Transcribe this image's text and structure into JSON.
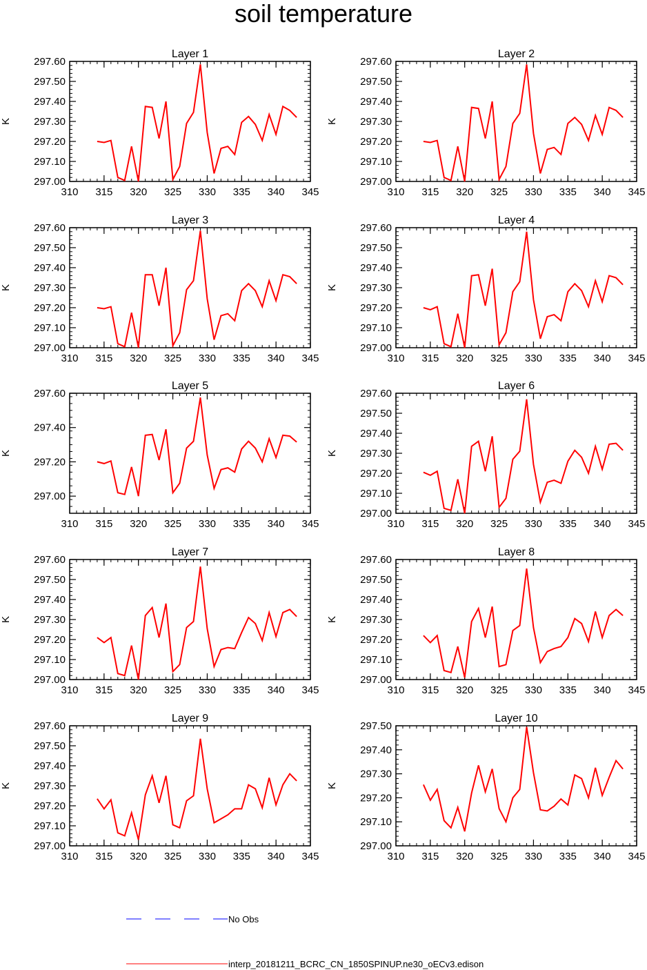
{
  "title": "soil temperature",
  "legend": {
    "obs_label": "No Obs",
    "model_label": "interp_20181211_BCRC_CN_1850SPINUP.ne30_oECv3.edison",
    "obs_color": "#0000ff",
    "model_color": "#ff0000"
  },
  "chart_data": [
    {
      "type": "line",
      "title": "Layer 1",
      "ylabel": "K",
      "xlim": [
        310,
        345
      ],
      "ylim": [
        297.0,
        297.6
      ],
      "xticks": [
        310,
        315,
        320,
        325,
        330,
        335,
        340,
        345
      ],
      "yticks": [
        "297.00",
        "297.10",
        "297.20",
        "297.30",
        "297.40",
        "297.50",
        "297.60"
      ],
      "x": [
        314,
        315,
        316,
        317,
        318,
        319,
        320,
        321,
        322,
        323,
        324,
        325,
        326,
        327,
        328,
        329,
        330,
        331,
        332,
        333,
        334,
        335,
        336,
        337,
        338,
        339,
        340,
        341,
        342,
        343
      ],
      "series": [
        {
          "color": "#ff0000",
          "values": [
            297.2,
            297.195,
            297.205,
            297.02,
            297.005,
            297.175,
            297.0,
            297.375,
            297.37,
            297.215,
            297.4,
            297.01,
            297.075,
            297.29,
            297.345,
            297.585,
            297.245,
            297.04,
            297.165,
            297.175,
            297.135,
            297.295,
            297.325,
            297.285,
            297.205,
            297.335,
            297.235,
            297.375,
            297.355,
            297.32
          ]
        }
      ]
    },
    {
      "type": "line",
      "title": "Layer 2",
      "ylabel": "K",
      "xlim": [
        310,
        345
      ],
      "ylim": [
        297.0,
        297.6
      ],
      "xticks": [
        310,
        315,
        320,
        325,
        330,
        335,
        340,
        345
      ],
      "yticks": [
        "297.00",
        "297.10",
        "297.20",
        "297.30",
        "297.40",
        "297.50",
        "297.60"
      ],
      "x": [
        314,
        315,
        316,
        317,
        318,
        319,
        320,
        321,
        322,
        323,
        324,
        325,
        326,
        327,
        328,
        329,
        330,
        331,
        332,
        333,
        334,
        335,
        336,
        337,
        338,
        339,
        340,
        341,
        342,
        343
      ],
      "series": [
        {
          "color": "#ff0000",
          "values": [
            297.2,
            297.195,
            297.205,
            297.02,
            297.005,
            297.175,
            297.0,
            297.37,
            297.365,
            297.215,
            297.4,
            297.01,
            297.075,
            297.29,
            297.34,
            297.585,
            297.24,
            297.04,
            297.16,
            297.17,
            297.135,
            297.29,
            297.32,
            297.285,
            297.205,
            297.33,
            297.235,
            297.37,
            297.355,
            297.32
          ]
        }
      ]
    },
    {
      "type": "line",
      "title": "Layer 3",
      "ylabel": "K",
      "xlim": [
        310,
        345
      ],
      "ylim": [
        297.0,
        297.6
      ],
      "xticks": [
        310,
        315,
        320,
        325,
        330,
        335,
        340,
        345
      ],
      "yticks": [
        "297.00",
        "297.10",
        "297.20",
        "297.30",
        "297.40",
        "297.50",
        "297.60"
      ],
      "x": [
        314,
        315,
        316,
        317,
        318,
        319,
        320,
        321,
        322,
        323,
        324,
        325,
        326,
        327,
        328,
        329,
        330,
        331,
        332,
        333,
        334,
        335,
        336,
        337,
        338,
        339,
        340,
        341,
        342,
        343
      ],
      "series": [
        {
          "color": "#ff0000",
          "values": [
            297.2,
            297.195,
            297.205,
            297.02,
            297.005,
            297.175,
            297.0,
            297.365,
            297.365,
            297.21,
            297.4,
            297.01,
            297.075,
            297.29,
            297.335,
            297.585,
            297.245,
            297.04,
            297.16,
            297.17,
            297.135,
            297.285,
            297.32,
            297.285,
            297.205,
            297.335,
            297.235,
            297.365,
            297.355,
            297.32
          ]
        }
      ]
    },
    {
      "type": "line",
      "title": "Layer 4",
      "ylabel": "K",
      "xlim": [
        310,
        345
      ],
      "ylim": [
        297.0,
        297.6
      ],
      "xticks": [
        310,
        315,
        320,
        325,
        330,
        335,
        340,
        345
      ],
      "yticks": [
        "297.00",
        "297.10",
        "297.20",
        "297.30",
        "297.40",
        "297.50",
        "297.60"
      ],
      "x": [
        314,
        315,
        316,
        317,
        318,
        319,
        320,
        321,
        322,
        323,
        324,
        325,
        326,
        327,
        328,
        329,
        330,
        331,
        332,
        333,
        334,
        335,
        336,
        337,
        338,
        339,
        340,
        341,
        342,
        343
      ],
      "series": [
        {
          "color": "#ff0000",
          "values": [
            297.2,
            297.19,
            297.205,
            297.02,
            297.005,
            297.17,
            297.0,
            297.36,
            297.365,
            297.21,
            297.395,
            297.015,
            297.075,
            297.28,
            297.33,
            297.58,
            297.24,
            297.045,
            297.155,
            297.165,
            297.135,
            297.28,
            297.32,
            297.285,
            297.205,
            297.335,
            297.23,
            297.36,
            297.35,
            297.315
          ]
        }
      ]
    },
    {
      "type": "line",
      "title": "Layer 5",
      "ylabel": "K",
      "xlim": [
        310,
        345
      ],
      "ylim": [
        296.9,
        297.6
      ],
      "xticks": [
        310,
        315,
        320,
        325,
        330,
        335,
        340,
        345
      ],
      "yticks": [
        "297.00",
        "297.20",
        "297.40",
        "297.60"
      ],
      "x": [
        314,
        315,
        316,
        317,
        318,
        319,
        320,
        321,
        322,
        323,
        324,
        325,
        326,
        327,
        328,
        329,
        330,
        331,
        332,
        333,
        334,
        335,
        336,
        337,
        338,
        339,
        340,
        341,
        342,
        343
      ],
      "series": [
        {
          "color": "#ff0000",
          "values": [
            297.2,
            297.19,
            297.205,
            297.02,
            297.01,
            297.17,
            297.0,
            297.355,
            297.36,
            297.21,
            297.39,
            297.02,
            297.075,
            297.28,
            297.32,
            297.575,
            297.24,
            297.045,
            297.155,
            297.165,
            297.14,
            297.275,
            297.32,
            297.28,
            297.2,
            297.335,
            297.225,
            297.355,
            297.35,
            297.315
          ]
        }
      ]
    },
    {
      "type": "line",
      "title": "Layer 6",
      "ylabel": "K",
      "xlim": [
        310,
        345
      ],
      "ylim": [
        297.0,
        297.6
      ],
      "xticks": [
        310,
        315,
        320,
        325,
        330,
        335,
        340,
        345
      ],
      "yticks": [
        "297.00",
        "297.10",
        "297.20",
        "297.30",
        "297.40",
        "297.50",
        "297.60"
      ],
      "x": [
        314,
        315,
        316,
        317,
        318,
        319,
        320,
        321,
        322,
        323,
        324,
        325,
        326,
        327,
        328,
        329,
        330,
        331,
        332,
        333,
        334,
        335,
        336,
        337,
        338,
        339,
        340,
        341,
        342,
        343
      ],
      "series": [
        {
          "color": "#ff0000",
          "values": [
            297.205,
            297.19,
            297.21,
            297.025,
            297.015,
            297.17,
            297.0,
            297.335,
            297.36,
            297.21,
            297.385,
            297.03,
            297.075,
            297.27,
            297.31,
            297.57,
            297.245,
            297.055,
            297.155,
            297.165,
            297.15,
            297.26,
            297.315,
            297.28,
            297.2,
            297.335,
            297.22,
            297.345,
            297.35,
            297.315
          ]
        }
      ]
    },
    {
      "type": "line",
      "title": "Layer 7",
      "ylabel": "K",
      "xlim": [
        310,
        345
      ],
      "ylim": [
        297.0,
        297.6
      ],
      "xticks": [
        310,
        315,
        320,
        325,
        330,
        335,
        340,
        345
      ],
      "yticks": [
        "297.00",
        "297.10",
        "297.20",
        "297.30",
        "297.40",
        "297.50",
        "297.60"
      ],
      "x": [
        314,
        315,
        316,
        317,
        318,
        319,
        320,
        321,
        322,
        323,
        324,
        325,
        326,
        327,
        328,
        329,
        330,
        331,
        332,
        333,
        334,
        335,
        336,
        337,
        338,
        339,
        340,
        341,
        342,
        343
      ],
      "series": [
        {
          "color": "#ff0000",
          "values": [
            297.21,
            297.185,
            297.21,
            297.03,
            297.02,
            297.17,
            297.0,
            297.32,
            297.36,
            297.21,
            297.38,
            297.04,
            297.075,
            297.26,
            297.29,
            297.565,
            297.255,
            297.065,
            297.15,
            297.16,
            297.155,
            297.235,
            297.31,
            297.28,
            297.195,
            297.335,
            297.215,
            297.335,
            297.35,
            297.315
          ]
        }
      ]
    },
    {
      "type": "line",
      "title": "Layer 8",
      "ylabel": "K",
      "xlim": [
        310,
        345
      ],
      "ylim": [
        297.0,
        297.6
      ],
      "xticks": [
        310,
        315,
        320,
        325,
        330,
        335,
        340,
        345
      ],
      "yticks": [
        "297.00",
        "297.10",
        "297.20",
        "297.30",
        "297.40",
        "297.50",
        "297.60"
      ],
      "x": [
        314,
        315,
        316,
        317,
        318,
        319,
        320,
        321,
        322,
        323,
        324,
        325,
        326,
        327,
        328,
        329,
        330,
        331,
        332,
        333,
        334,
        335,
        336,
        337,
        338,
        339,
        340,
        341,
        342,
        343
      ],
      "series": [
        {
          "color": "#ff0000",
          "values": [
            297.22,
            297.185,
            297.22,
            297.045,
            297.035,
            297.165,
            297.01,
            297.29,
            297.355,
            297.21,
            297.365,
            297.065,
            297.075,
            297.245,
            297.27,
            297.555,
            297.26,
            297.085,
            297.14,
            297.155,
            297.165,
            297.21,
            297.305,
            297.28,
            297.19,
            297.34,
            297.21,
            297.32,
            297.35,
            297.32
          ]
        }
      ]
    },
    {
      "type": "line",
      "title": "Layer 9",
      "ylabel": "K",
      "xlim": [
        310,
        345
      ],
      "ylim": [
        297.0,
        297.6
      ],
      "xticks": [
        310,
        315,
        320,
        325,
        330,
        335,
        340,
        345
      ],
      "yticks": [
        "297.00",
        "297.10",
        "297.20",
        "297.30",
        "297.40",
        "297.50",
        "297.60"
      ],
      "x": [
        314,
        315,
        316,
        317,
        318,
        319,
        320,
        321,
        322,
        323,
        324,
        325,
        326,
        327,
        328,
        329,
        330,
        331,
        332,
        333,
        334,
        335,
        336,
        337,
        338,
        339,
        340,
        341,
        342,
        343
      ],
      "series": [
        {
          "color": "#ff0000",
          "values": [
            297.235,
            297.185,
            297.23,
            297.065,
            297.05,
            297.165,
            297.03,
            297.255,
            297.35,
            297.215,
            297.35,
            297.105,
            297.09,
            297.225,
            297.25,
            297.535,
            297.285,
            297.115,
            297.135,
            297.155,
            297.185,
            297.185,
            297.305,
            297.285,
            297.19,
            297.34,
            297.205,
            297.305,
            297.36,
            297.325
          ]
        }
      ]
    },
    {
      "type": "line",
      "title": "Layer 10",
      "ylabel": "K",
      "xlim": [
        310,
        345
      ],
      "ylim": [
        297.0,
        297.5
      ],
      "xticks": [
        310,
        315,
        320,
        325,
        330,
        335,
        340,
        345
      ],
      "yticks": [
        "297.00",
        "297.10",
        "297.20",
        "297.30",
        "297.40",
        "297.50"
      ],
      "x": [
        314,
        315,
        316,
        317,
        318,
        319,
        320,
        321,
        322,
        323,
        324,
        325,
        326,
        327,
        328,
        329,
        330,
        331,
        332,
        333,
        334,
        335,
        336,
        337,
        338,
        339,
        340,
        341,
        342,
        343
      ],
      "series": [
        {
          "color": "#ff0000",
          "values": [
            297.255,
            297.19,
            297.235,
            297.105,
            297.075,
            297.16,
            297.06,
            297.22,
            297.335,
            297.225,
            297.32,
            297.155,
            297.1,
            297.2,
            297.235,
            297.495,
            297.305,
            297.15,
            297.145,
            297.165,
            297.195,
            297.17,
            297.295,
            297.28,
            297.2,
            297.325,
            297.21,
            297.285,
            297.355,
            297.32
          ]
        }
      ]
    }
  ]
}
